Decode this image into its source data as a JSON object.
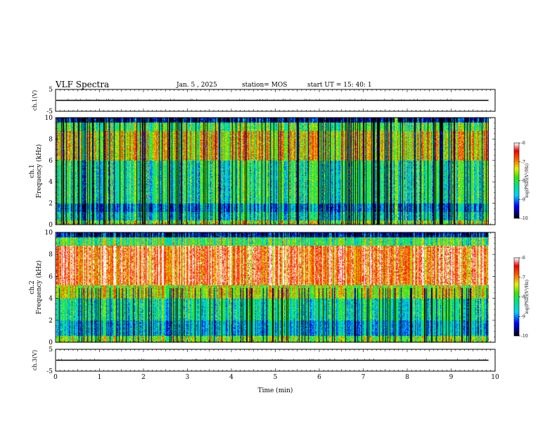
{
  "header": {
    "title": "VLF Spectra",
    "date": "Jan. 5 , 2025",
    "station": "station= MOS",
    "start": "start UT = 15: 40: 1"
  },
  "chart_data": [
    {
      "type": "line",
      "id": "ch1-waveform",
      "ylabel": "ch.1(V)",
      "ylim": [
        -5,
        5
      ],
      "yticks": [
        5,
        -5
      ],
      "xlim": [
        0,
        10
      ],
      "series_level": 0
    },
    {
      "type": "heatmap",
      "id": "ch1-spectrogram",
      "ylabel": "ch.1 Frequency (kHz)",
      "ylim": [
        0,
        10
      ],
      "yticks": [
        0,
        2,
        4,
        6,
        8,
        10
      ],
      "xlim": [
        0,
        9.85
      ],
      "colorbar": {
        "label": "log(PSD)(V²/Hz)",
        "range": [
          -10,
          -6
        ],
        "ticks": [
          -6,
          -7,
          -8,
          -9,
          -10
        ]
      },
      "gap_minute": 7.7
    },
    {
      "type": "heatmap",
      "id": "ch2-spectrogram",
      "ylabel": "ch.2 Frequency (kHz)",
      "ylim": [
        0,
        10
      ],
      "yticks": [
        0,
        2,
        4,
        6,
        8,
        10
      ],
      "xlim": [
        0,
        9.85
      ],
      "colorbar": {
        "label": "log(PSD)(V²/Hz)",
        "range": [
          -10,
          -6
        ],
        "ticks": [
          -6,
          -7,
          -8,
          -9,
          -10
        ]
      }
    },
    {
      "type": "line",
      "id": "ch3-waveform",
      "ylabel": "ch.3(V)",
      "ylim": [
        -5,
        5
      ],
      "yticks": [
        5,
        -5
      ],
      "xlim": [
        0,
        10
      ],
      "series_level": 0
    }
  ],
  "xaxis": {
    "label": "Time (min)",
    "ticks": [
      0,
      1,
      2,
      3,
      4,
      5,
      6,
      7,
      8,
      9,
      10
    ]
  }
}
